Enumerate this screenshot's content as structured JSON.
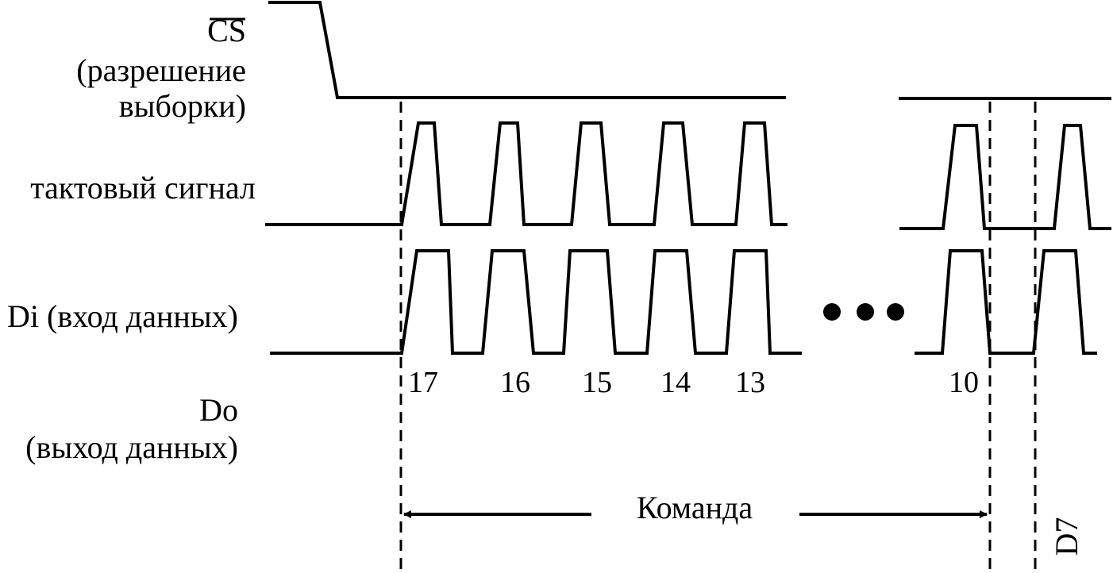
{
  "labels": {
    "cs": "CS",
    "cs_desc_1": "(разрешение",
    "cs_desc_2": "выборки)",
    "clock": "тактовый сигнал",
    "di": "Di (вход данных)",
    "do_1": "Do",
    "do_2": "(выход данных)"
  },
  "bit_numbers": [
    "17",
    "16",
    "15",
    "14",
    "13",
    "10"
  ],
  "command_label": "Команда",
  "d7_label": "D7",
  "colors": {
    "stroke": "#000000",
    "background": "#ffffff"
  }
}
